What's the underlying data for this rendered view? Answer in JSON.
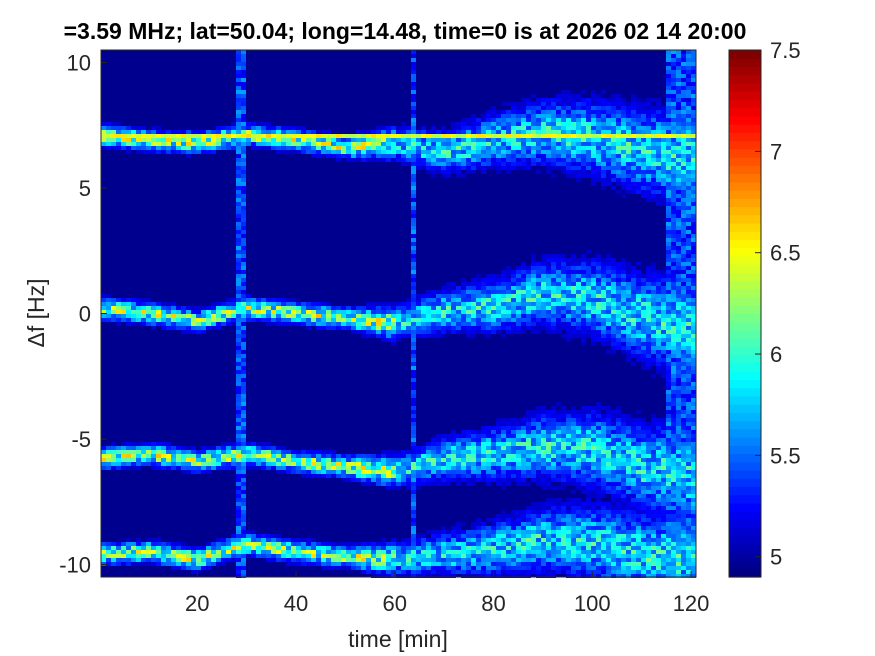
{
  "chart_data": {
    "type": "heatmap",
    "title": "=3.59 MHz;  lat=50.04; long=14.48, time=0 is at 2026 02 14 20:00",
    "xlabel": "time [min]",
    "ylabel": "Δf [Hz]",
    "xlim": [
      0.5,
      121
    ],
    "ylim": [
      -10.5,
      10.5
    ],
    "x_ticks": [
      20,
      40,
      60,
      80,
      100,
      120
    ],
    "y_ticks": [
      -10,
      -5,
      0,
      5,
      10
    ],
    "colorbar": {
      "clim": [
        4.9,
        7.5
      ],
      "ticks": [
        "5",
        "5.5",
        "6",
        "6.5",
        "7",
        "7.5"
      ],
      "tick_values": [
        5,
        5.5,
        6,
        6.5,
        7,
        7.5
      ],
      "colormap": "jet"
    },
    "background_level": 4.95,
    "traces": [
      {
        "name": "",
        "x": [
          0,
          10,
          20,
          30,
          40,
          50,
          60,
          70,
          80,
          90,
          100,
          110,
          120
        ],
        "y": [
          7.1,
          6.9,
          6.8,
          7.1,
          6.9,
          6.6,
          6.8,
          6.4,
          6.9,
          7.2,
          7.0,
          6.5,
          6.2
        ]
      },
      {
        "name": "",
        "x": [
          0,
          10,
          20,
          30,
          40,
          50,
          60,
          70,
          80,
          90,
          100,
          110,
          120
        ],
        "y": [
          0.2,
          0.0,
          -0.3,
          0.2,
          0.0,
          -0.2,
          -0.4,
          0.1,
          0.3,
          0.8,
          0.6,
          -0.1,
          -0.6
        ]
      },
      {
        "name": "",
        "x": [
          0,
          10,
          20,
          30,
          40,
          50,
          60,
          70,
          80,
          90,
          100,
          110,
          120
        ],
        "y": [
          -5.8,
          -5.6,
          -5.9,
          -5.6,
          -5.9,
          -6.1,
          -6.3,
          -5.8,
          -5.6,
          -5.3,
          -5.4,
          -6.1,
          -6.5
        ]
      },
      {
        "name": "",
        "x": [
          0,
          10,
          20,
          30,
          40,
          50,
          60,
          70,
          80,
          90,
          100,
          110,
          120
        ],
        "y": [
          -9.6,
          -9.5,
          -9.8,
          -9.2,
          -9.5,
          -9.7,
          -9.8,
          -9.6,
          -9.4,
          -9.0,
          -9.1,
          -9.6,
          -9.9
        ]
      }
    ],
    "carrier_line_y": 7.1,
    "vertical_interference_x": [
      28,
      29.5,
      64,
      116,
      118,
      120
    ]
  }
}
